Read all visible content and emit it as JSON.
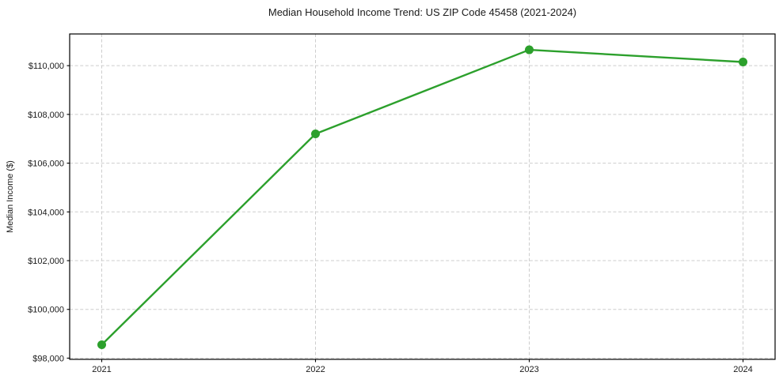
{
  "chart_data": {
    "type": "line",
    "title": "Median Household Income Trend: US ZIP Code 45458 (2021-2024)",
    "xlabel": "",
    "ylabel": "Median Income ($)",
    "x": [
      2021,
      2022,
      2023,
      2024
    ],
    "values": [
      98550,
      107200,
      110650,
      110150
    ],
    "xticks": [
      {
        "value": 2021,
        "label": "2021"
      },
      {
        "value": 2022,
        "label": "2022"
      },
      {
        "value": 2023,
        "label": "2023"
      },
      {
        "value": 2024,
        "label": "2024"
      }
    ],
    "yticks": [
      {
        "value": 98000,
        "label": "$98,000"
      },
      {
        "value": 100000,
        "label": "$100,000"
      },
      {
        "value": 102000,
        "label": "$102,000"
      },
      {
        "value": 104000,
        "label": "$104,000"
      },
      {
        "value": 106000,
        "label": "$106,000"
      },
      {
        "value": 108000,
        "label": "$108,000"
      },
      {
        "value": 110000,
        "label": "$110,000"
      }
    ],
    "xlim": [
      2020.85,
      2024.15
    ],
    "ylim": [
      97950,
      111300
    ],
    "grid": true,
    "grid_style": "dashed",
    "legend": "none",
    "colors": {
      "line": "#2ca02c",
      "marker": "#2ca02c",
      "grid": "#cdcdcd",
      "axis": "#000000",
      "text": "#1a1a1a",
      "background": "#ffffff"
    }
  }
}
